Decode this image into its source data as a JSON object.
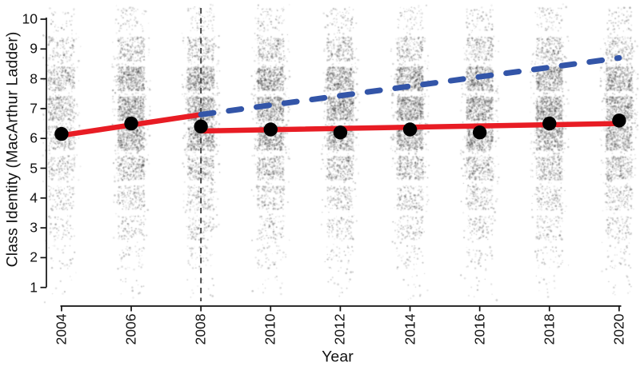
{
  "chart_data": {
    "type": "scatter",
    "title": "",
    "xlabel": "Year",
    "ylabel": "Class Identity (MacArthur Ladder)",
    "x_ticks": [
      2004,
      2006,
      2008,
      2010,
      2012,
      2014,
      2016,
      2018,
      2020
    ],
    "y_ticks": [
      1,
      2,
      3,
      4,
      5,
      6,
      7,
      8,
      9,
      10
    ],
    "xlim": [
      2004,
      2020
    ],
    "ylim": [
      1,
      10
    ],
    "grid": false,
    "legend": "none",
    "black_points": {
      "years": [
        2004,
        2006,
        2008,
        2010,
        2012,
        2014,
        2016,
        2018,
        2020
      ],
      "values": [
        6.15,
        6.5,
        6.4,
        6.3,
        6.2,
        6.3,
        6.2,
        6.5,
        6.6
      ]
    },
    "red_solid_line": {
      "segments": [
        {
          "x": [
            2004,
            2008
          ],
          "y": [
            6.1,
            6.8
          ]
        },
        {
          "x": [
            2008,
            2020
          ],
          "y": [
            6.25,
            6.5
          ]
        }
      ]
    },
    "blue_dashed_line": {
      "x": [
        2008,
        2020
      ],
      "y": [
        6.8,
        8.7
      ]
    },
    "vertical_dashed_line_x": 2008,
    "jitter_density": {
      "levels": [
        1,
        2,
        3,
        4,
        5,
        6,
        7,
        8,
        9,
        10
      ],
      "points_per_level": [
        14,
        45,
        110,
        170,
        300,
        520,
        600,
        540,
        240,
        70
      ],
      "year_weights": [
        0.55,
        1,
        1,
        1,
        0.95,
        1,
        0.95,
        0.95,
        0.9
      ]
    },
    "colors": {
      "red": "#E81C24",
      "blue": "#3355A8",
      "points": "#000000",
      "axis": "#111111",
      "event_line": "#3C3C3C",
      "jitter": "#141414",
      "background": "#FFFFFF"
    }
  }
}
